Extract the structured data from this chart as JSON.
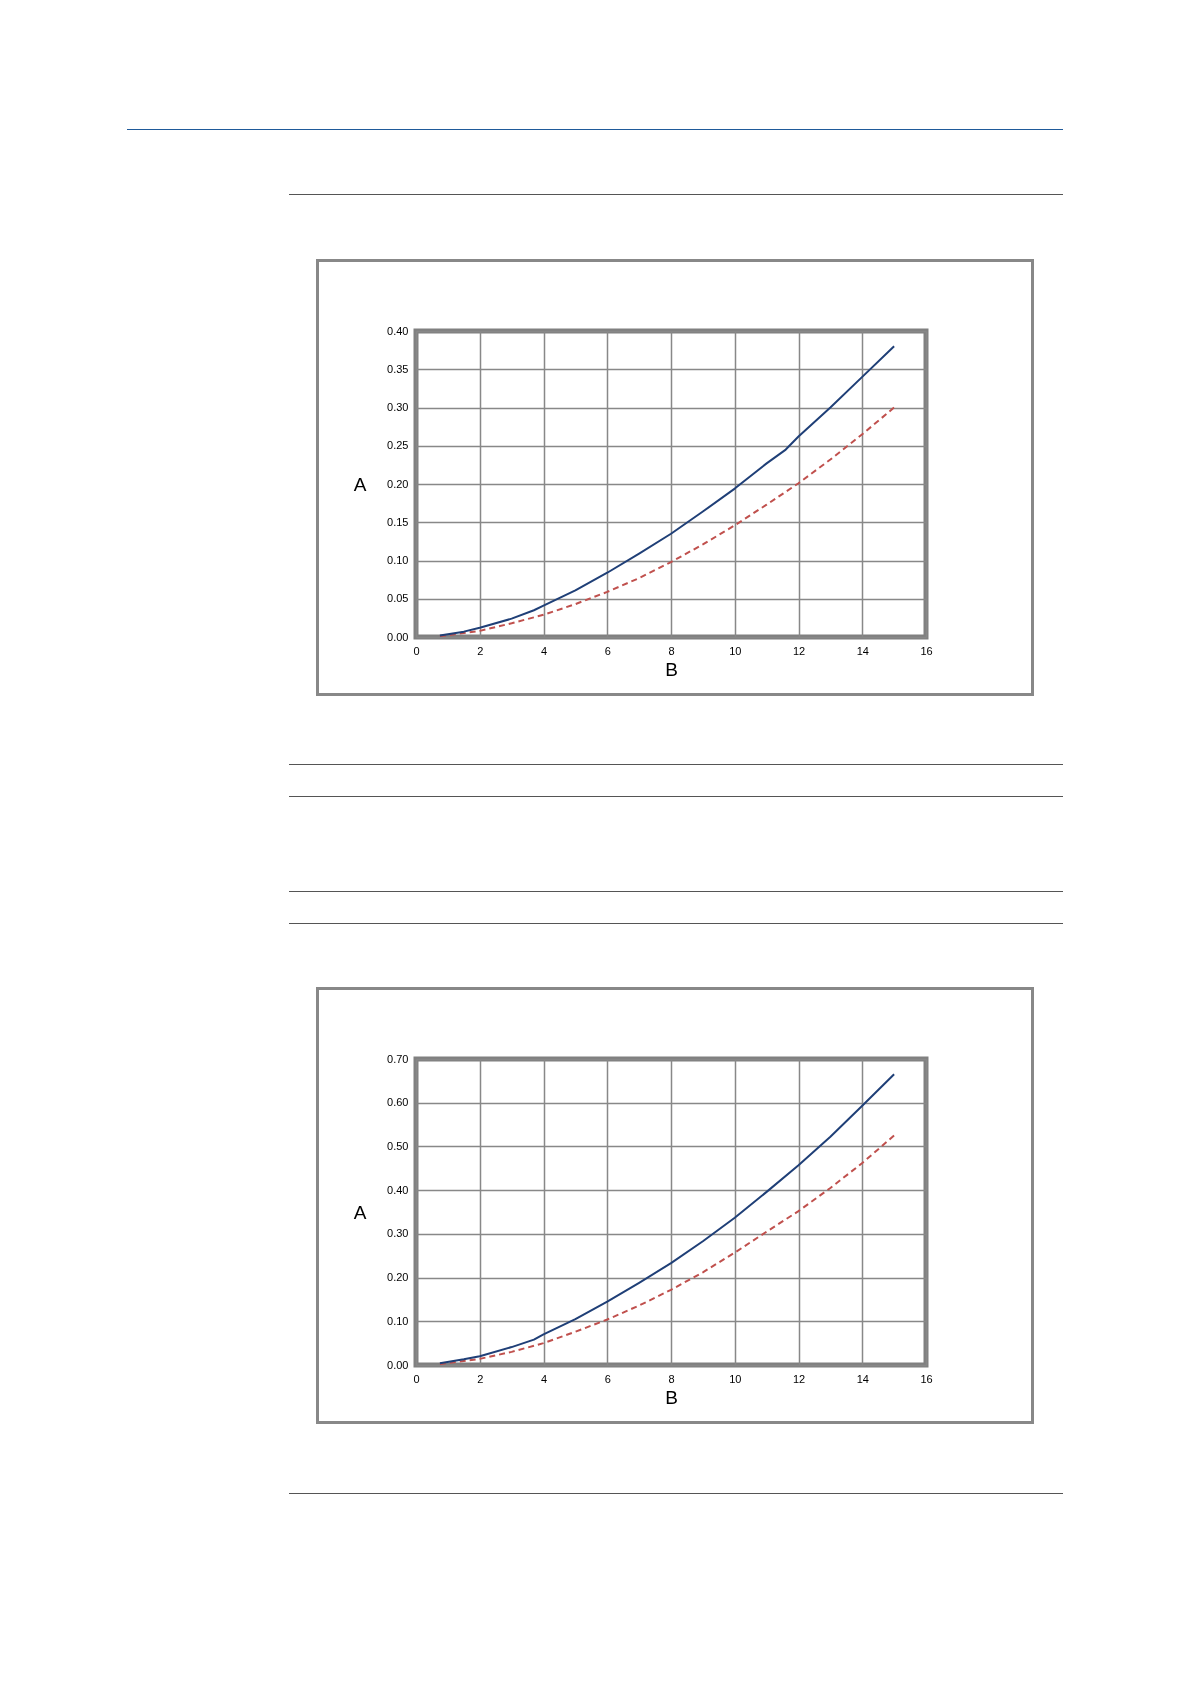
{
  "chart_data": [
    {
      "type": "line",
      "xlabel": "B",
      "ylabel": "A",
      "xlim": [
        0,
        16
      ],
      "xticks": [
        0,
        2,
        4,
        6,
        8,
        10,
        12,
        14,
        16
      ],
      "ylim": [
        0,
        0.4
      ],
      "yticks": [
        {
          "value": 0,
          "label": "0.00"
        },
        {
          "value": 0.05,
          "label": "0.05"
        },
        {
          "value": 0.1,
          "label": "0.10"
        },
        {
          "value": 0.15,
          "label": "0.15"
        },
        {
          "value": 0.2,
          "label": "0.20"
        },
        {
          "value": 0.25,
          "label": "0.25"
        },
        {
          "value": 0.3,
          "label": "0.30"
        },
        {
          "value": 0.35,
          "label": "0.35"
        },
        {
          "value": 0.4,
          "label": "0.40"
        }
      ],
      "grid": true,
      "legend": false,
      "series": [
        {
          "color": "#c0504d",
          "line_style": "dashed",
          "x": [
            0.75,
            2,
            3,
            4,
            5,
            6,
            7,
            8,
            9,
            10,
            11,
            12,
            13,
            14,
            15
          ],
          "values": [
            0.001,
            0.008,
            0.018,
            0.029,
            0.043,
            0.059,
            0.077,
            0.098,
            0.121,
            0.146,
            0.173,
            0.201,
            0.232,
            0.265,
            0.3
          ]
        },
        {
          "color": "#1f3f77",
          "line_style": "solid",
          "x": [
            0.75,
            1.5,
            2,
            3,
            3.7,
            4,
            5,
            6,
            7,
            8,
            9,
            10,
            11,
            11.6,
            12,
            13,
            14,
            15
          ],
          "values": [
            0.002,
            0.007,
            0.012,
            0.024,
            0.035,
            0.041,
            0.061,
            0.084,
            0.109,
            0.135,
            0.164,
            0.194,
            0.227,
            0.245,
            0.262,
            0.3,
            0.34,
            0.38
          ]
        }
      ]
    },
    {
      "type": "line",
      "xlabel": "B",
      "ylabel": "A",
      "xlim": [
        0,
        16
      ],
      "xticks": [
        0,
        2,
        4,
        6,
        8,
        10,
        12,
        14,
        16
      ],
      "ylim": [
        0,
        0.7
      ],
      "yticks": [
        {
          "value": 0,
          "label": "0.00"
        },
        {
          "value": 0.1,
          "label": "0.10"
        },
        {
          "value": 0.2,
          "label": "0.20"
        },
        {
          "value": 0.3,
          "label": "0.30"
        },
        {
          "value": 0.4,
          "label": "0.40"
        },
        {
          "value": 0.5,
          "label": "0.50"
        },
        {
          "value": 0.6,
          "label": "0.60"
        },
        {
          "value": 0.7,
          "label": "0.70"
        }
      ],
      "grid": true,
      "legend": false,
      "series": [
        {
          "color": "#c0504d",
          "line_style": "dashed",
          "x": [
            0.75,
            2,
            3,
            4,
            5,
            6,
            7,
            8,
            9,
            10,
            11,
            12,
            13,
            14,
            15
          ],
          "values": [
            0.002,
            0.014,
            0.03,
            0.05,
            0.076,
            0.104,
            0.136,
            0.172,
            0.212,
            0.257,
            0.305,
            0.352,
            0.405,
            0.462,
            0.525
          ]
        },
        {
          "color": "#1f3f77",
          "line_style": "solid",
          "x": [
            0.75,
            1.5,
            2,
            3,
            3.7,
            4,
            5,
            6,
            7,
            8,
            9,
            10,
            11,
            12,
            13,
            14,
            15
          ],
          "values": [
            0.004,
            0.013,
            0.02,
            0.041,
            0.058,
            0.07,
            0.105,
            0.145,
            0.188,
            0.233,
            0.283,
            0.337,
            0.396,
            0.457,
            0.522,
            0.593,
            0.665
          ]
        }
      ]
    }
  ]
}
